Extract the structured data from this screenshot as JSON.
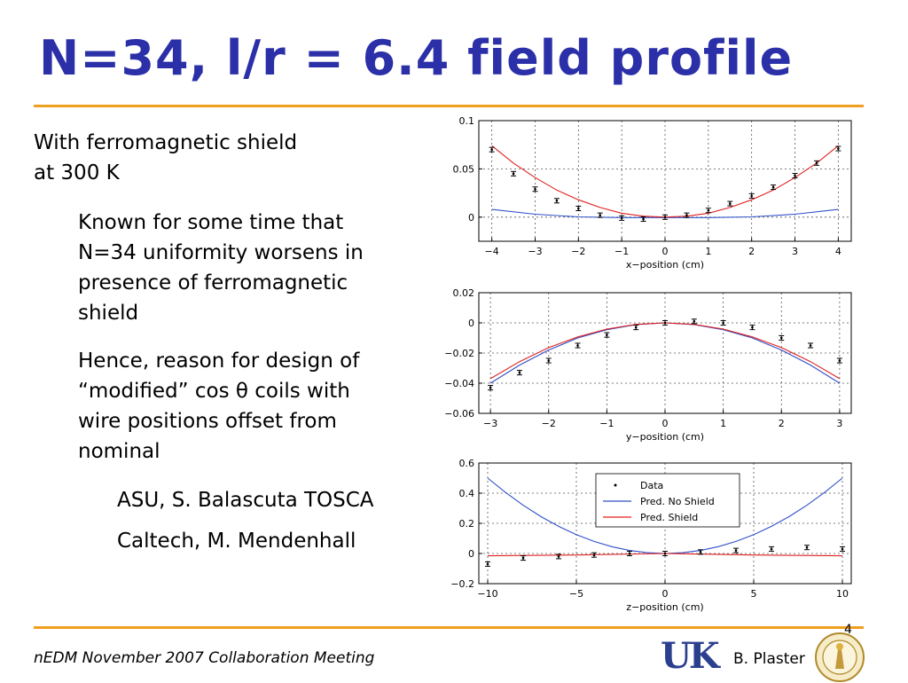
{
  "slide": {
    "title": "N=34, l/r = 6.4 field profile",
    "body": {
      "intro_lines": [
        "With ferromagnetic shield",
        "at 300 K"
      ],
      "bullet1_lines": [
        "Known for some time that",
        "N=34 uniformity worsens in",
        "presence of ferromagnetic",
        "shield"
      ],
      "bullet2_lines": [
        "Hence, reason for design of",
        "“modified” cos θ coils with",
        "wire positions offset from",
        "nominal"
      ],
      "sub_bullets": [
        "ASU, S. Balascuta TOSCA",
        "Caltech, M. Mendenhall"
      ]
    },
    "footer": {
      "meeting": "nEDM November 2007 Collaboration Meeting",
      "logo_text": "UK",
      "author": "B. Plaster",
      "page_number": "4"
    },
    "colors": {
      "title": "#2b2fa8",
      "rule": "#f0a020",
      "no_shield": "#3050c8",
      "shield": "#e02020",
      "data": "#000000"
    }
  },
  "chart_data": [
    {
      "type": "scatter",
      "title": "",
      "xlabel": "x−position (cm)",
      "ylabel": "",
      "xlim": [
        -4.3,
        4.3
      ],
      "ylim": [
        -0.025,
        0.1
      ],
      "xticks": [
        -4,
        -3,
        -2,
        -1,
        0,
        1,
        2,
        3,
        4
      ],
      "yticks": [
        0,
        0.05,
        0.1
      ],
      "ytick_labels": [
        "0",
        "0.05",
        "0.1"
      ],
      "grid": true,
      "data": {
        "x": [
          -4,
          -3.5,
          -3,
          -2.5,
          -2,
          -1.5,
          -1,
          -0.5,
          0,
          0.5,
          1,
          1.5,
          2,
          2.5,
          3,
          3.5,
          4
        ],
        "y": [
          0.07,
          0.045,
          0.029,
          0.017,
          0.009,
          0.002,
          -0.001,
          -0.002,
          0.0,
          0.002,
          0.007,
          0.014,
          0.022,
          0.031,
          0.043,
          0.056,
          0.071
        ],
        "err": 0.0015
      },
      "series": [
        {
          "name": "Pred. No Shield",
          "x": [
            -4,
            -3,
            -2,
            -1,
            0,
            1,
            2,
            3,
            4
          ],
          "y": [
            0.008,
            0.003,
            0.0003,
            -0.0005,
            -0.0005,
            -0.0005,
            0.0003,
            0.003,
            0.008
          ]
        },
        {
          "name": "Pred. Shield",
          "x": [
            -4,
            -3.5,
            -3,
            -2.5,
            -2,
            -1.5,
            -1,
            -0.5,
            0,
            0.5,
            1,
            1.5,
            2,
            2.5,
            3,
            3.5,
            4
          ],
          "y": [
            0.074,
            0.056,
            0.041,
            0.028,
            0.018,
            0.01,
            0.004,
            0.001,
            0.0,
            0.001,
            0.004,
            0.01,
            0.018,
            0.028,
            0.041,
            0.056,
            0.074
          ]
        }
      ],
      "legend": false
    },
    {
      "type": "scatter",
      "title": "",
      "xlabel": "y−position (cm)",
      "ylabel": "",
      "xlim": [
        -3.2,
        3.2
      ],
      "ylim": [
        -0.06,
        0.02
      ],
      "xticks": [
        -3,
        -2,
        -1,
        0,
        1,
        2,
        3
      ],
      "yticks": [
        -0.06,
        -0.04,
        -0.02,
        0,
        0.02
      ],
      "ytick_labels": [
        "−0.06",
        "−0.04",
        "−0.02",
        "0",
        "0.02"
      ],
      "grid": true,
      "data": {
        "x": [
          -3,
          -2.5,
          -2,
          -1.5,
          -1,
          -0.5,
          0,
          0.5,
          1,
          1.5,
          2,
          2.5,
          3
        ],
        "y": [
          -0.043,
          -0.033,
          -0.025,
          -0.015,
          -0.008,
          -0.003,
          0.0,
          0.001,
          0.0,
          -0.003,
          -0.01,
          -0.015,
          -0.025
        ],
        "err": 0.0015
      },
      "series": [
        {
          "name": "Pred. No Shield",
          "x": [
            -3,
            -2.5,
            -2,
            -1.5,
            -1,
            -0.5,
            0,
            0.5,
            1,
            1.5,
            2,
            2.5,
            3
          ],
          "y": [
            -0.04,
            -0.028,
            -0.018,
            -0.01,
            -0.0045,
            -0.0011,
            0.0,
            -0.0011,
            -0.0045,
            -0.01,
            -0.018,
            -0.028,
            -0.04
          ]
        },
        {
          "name": "Pred. Shield",
          "x": [
            -3,
            -2.5,
            -2,
            -1.5,
            -1,
            -0.5,
            0,
            0.5,
            1,
            1.5,
            2,
            2.5,
            3
          ],
          "y": [
            -0.037,
            -0.0257,
            -0.0164,
            -0.0093,
            -0.0041,
            -0.001,
            0.0,
            -0.001,
            -0.0041,
            -0.0093,
            -0.0164,
            -0.0257,
            -0.037
          ]
        }
      ],
      "legend": false
    },
    {
      "type": "scatter",
      "title": "",
      "xlabel": "z−position (cm)",
      "ylabel": "",
      "xlim": [
        -10.5,
        10.5
      ],
      "ylim": [
        -0.2,
        0.6
      ],
      "xticks": [
        -10,
        -5,
        0,
        5,
        10
      ],
      "xtick_labels": [
        "−10",
        "−5",
        "0",
        "5",
        "10"
      ],
      "yticks": [
        -0.2,
        0,
        0.2,
        0.4,
        0.6
      ],
      "ytick_labels": [
        "−0.2",
        "0",
        "0.2",
        "0.4",
        "0.6"
      ],
      "grid": true,
      "data": {
        "x": [
          -10,
          -8,
          -6,
          -4,
          -2,
          0,
          2,
          4,
          6,
          8,
          10
        ],
        "y": [
          -0.07,
          -0.03,
          -0.02,
          -0.01,
          0.0,
          0.0,
          0.01,
          0.02,
          0.03,
          0.04,
          0.03
        ],
        "err": 0.004
      },
      "series": [
        {
          "name": "Pred. No Shield",
          "x": [
            -10,
            -9,
            -8,
            -7,
            -6,
            -5,
            -4,
            -3,
            -2,
            -1,
            0,
            1,
            2,
            3,
            4,
            5,
            6,
            7,
            8,
            9,
            10
          ],
          "y": [
            0.5,
            0.405,
            0.32,
            0.245,
            0.18,
            0.125,
            0.08,
            0.045,
            0.02,
            0.005,
            0.0,
            0.005,
            0.02,
            0.045,
            0.08,
            0.125,
            0.18,
            0.245,
            0.32,
            0.405,
            0.5
          ]
        },
        {
          "name": "Pred. Shield",
          "x": [
            -10,
            -5,
            0,
            5,
            10
          ],
          "y": [
            -0.015,
            -0.01,
            0.0,
            -0.01,
            -0.015
          ]
        }
      ],
      "legend": true,
      "legend_position": "top-right",
      "legend_entries": [
        "Data",
        "Pred. No Shield",
        "Pred. Shield"
      ]
    }
  ]
}
